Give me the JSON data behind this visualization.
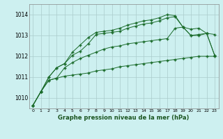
{
  "background_color": "#cdf0f0",
  "grid_color": "#aacccc",
  "line_color": "#1a6b2a",
  "marker_color": "#1a6b2a",
  "title": "Graphe pression niveau de la mer (hPa)",
  "xlim": [
    -0.5,
    23.5
  ],
  "ylim": [
    1009.5,
    1014.5
  ],
  "yticks": [
    1010,
    1011,
    1012,
    1013,
    1014
  ],
  "xticks": [
    0,
    1,
    2,
    3,
    4,
    5,
    6,
    7,
    8,
    9,
    10,
    11,
    12,
    13,
    14,
    15,
    16,
    17,
    18,
    19,
    20,
    21,
    22,
    23
  ],
  "series": [
    [
      1009.65,
      1010.3,
      1010.85,
      1010.95,
      1011.05,
      1011.1,
      1011.15,
      1011.2,
      1011.3,
      1011.35,
      1011.4,
      1011.5,
      1011.55,
      1011.6,
      1011.65,
      1011.7,
      1011.75,
      1011.8,
      1011.85,
      1011.9,
      1011.95,
      1012.0,
      1012.0,
      1012.0
    ],
    [
      1009.65,
      1010.3,
      1010.85,
      1010.95,
      1011.45,
      1011.7,
      1011.9,
      1012.05,
      1012.2,
      1012.35,
      1012.45,
      1012.5,
      1012.6,
      1012.65,
      1012.7,
      1012.75,
      1012.8,
      1012.85,
      1013.35,
      1013.4,
      1013.0,
      1013.0,
      1013.1,
      1012.05
    ],
    [
      1009.65,
      1010.3,
      1011.0,
      1011.45,
      1011.65,
      1012.05,
      1012.25,
      1012.6,
      1013.05,
      1013.1,
      1013.15,
      1013.2,
      1013.35,
      1013.45,
      1013.55,
      1013.6,
      1013.7,
      1013.85,
      1013.9,
      1013.4,
      1013.3,
      1013.35,
      1013.1,
      1013.05
    ],
    [
      1009.65,
      1010.3,
      1011.0,
      1011.45,
      1011.65,
      1012.2,
      1012.55,
      1012.9,
      1013.15,
      1013.2,
      1013.25,
      1013.35,
      1013.5,
      1013.6,
      1013.7,
      1013.75,
      1013.85,
      1014.0,
      1013.95,
      1013.4,
      1013.0,
      1013.05,
      1013.1,
      1012.05
    ]
  ]
}
